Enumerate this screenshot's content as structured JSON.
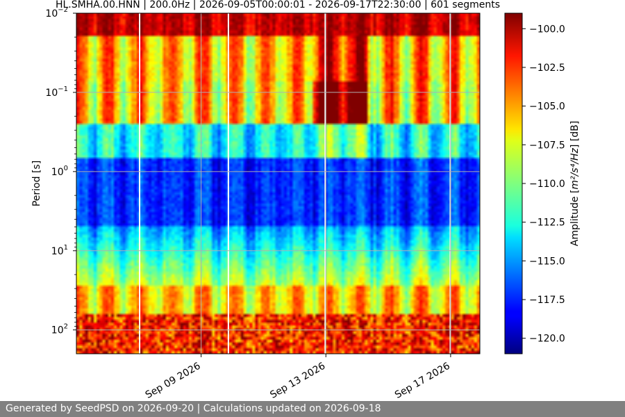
{
  "chart_data": {
    "type": "heatmap",
    "title": "HL.SMHA.00.HNN | 200.0Hz | 2026-09-05T00:00:01 - 2026-09-17T22:30:00 | 601 segments",
    "xlabel": "",
    "ylabel": "Period [s]",
    "x_range": [
      "2026-09-05T00:00:01",
      "2026-09-17T22:30:00"
    ],
    "x_tick_labels": [
      "Sep 09 2026",
      "Sep 13 2026",
      "Sep 17 2026"
    ],
    "y_scale": "log",
    "y_inverted": true,
    "y_range": [
      0.01,
      200
    ],
    "y_tick_labels": [
      {
        "base": "10",
        "exp": "−2"
      },
      {
        "base": "10",
        "exp": "−1"
      },
      {
        "base": "10",
        "exp": "0"
      },
      {
        "base": "10",
        "exp": "1"
      },
      {
        "base": "10",
        "exp": "2"
      }
    ],
    "colorbar": {
      "colormap": "jet",
      "label_prefix": "Amplitude [",
      "label_unit": "m²/s⁴/Hz",
      "label_suffix": "] [dB]",
      "range": [
        -121,
        -99
      ],
      "ticks": [
        "−100.0",
        "−102.5",
        "−105.0",
        "−107.5",
        "−110.0",
        "−112.5",
        "−115.0",
        "−117.5",
        "−120.0"
      ]
    },
    "grid": true
  },
  "footer": {
    "text": "Generated by SeedPSD on 2026-09-20 | Calculations updated on 2026-09-18"
  }
}
